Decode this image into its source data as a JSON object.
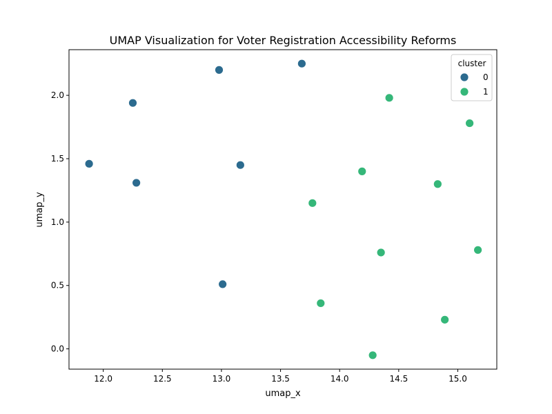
{
  "chart_data": {
    "type": "scatter",
    "title": "UMAP Visualization for Voter Registration Accessibility Reforms",
    "xlabel": "umap_x",
    "ylabel": "umap_y",
    "xlim": [
      11.71,
      15.33
    ],
    "ylim": [
      -0.16,
      2.36
    ],
    "xticks": [
      "12.0",
      "12.5",
      "13.0",
      "13.5",
      "14.0",
      "14.5",
      "15.0"
    ],
    "yticks": [
      "0.0",
      "0.5",
      "1.0",
      "1.5",
      "2.0"
    ],
    "grid": false,
    "legend": {
      "title": "cluster",
      "placement": "top-right"
    },
    "series": [
      {
        "name": "0",
        "color": "#2c6b8f",
        "points": [
          {
            "x": 11.88,
            "y": 1.46
          },
          {
            "x": 12.25,
            "y": 1.94
          },
          {
            "x": 12.28,
            "y": 1.31
          },
          {
            "x": 12.98,
            "y": 2.2
          },
          {
            "x": 13.01,
            "y": 0.51
          },
          {
            "x": 13.16,
            "y": 1.45
          },
          {
            "x": 13.68,
            "y": 2.25
          }
        ]
      },
      {
        "name": "1",
        "color": "#35b779",
        "points": [
          {
            "x": 13.77,
            "y": 1.15
          },
          {
            "x": 13.84,
            "y": 0.36
          },
          {
            "x": 14.19,
            "y": 1.4
          },
          {
            "x": 14.28,
            "y": -0.05
          },
          {
            "x": 14.35,
            "y": 0.76
          },
          {
            "x": 14.42,
            "y": 1.98
          },
          {
            "x": 14.83,
            "y": 1.3
          },
          {
            "x": 14.89,
            "y": 0.23
          },
          {
            "x": 15.1,
            "y": 1.78
          },
          {
            "x": 15.17,
            "y": 0.78
          }
        ]
      }
    ]
  }
}
